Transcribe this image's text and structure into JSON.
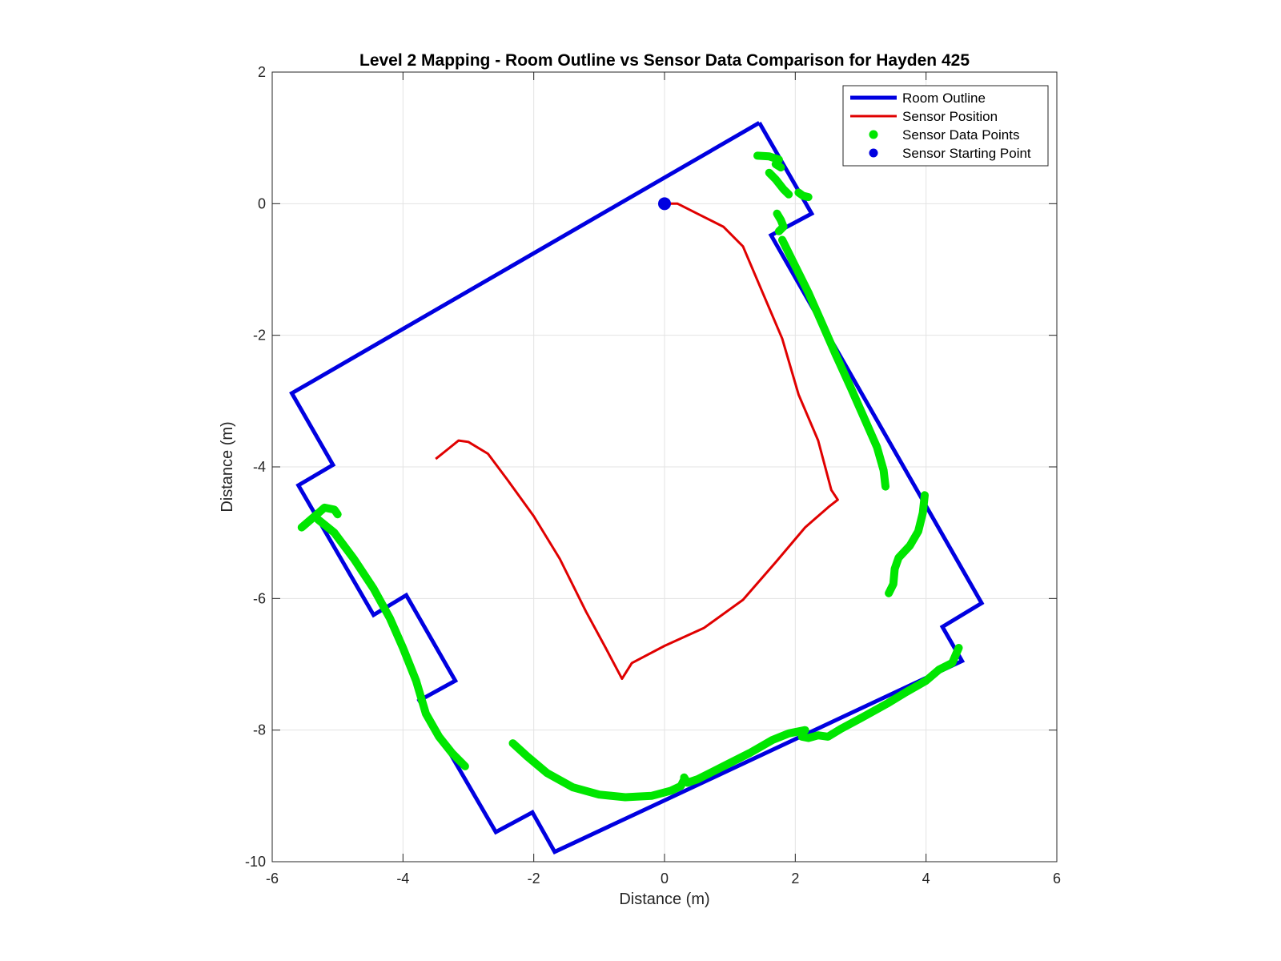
{
  "chart_data": {
    "type": "line",
    "title": "Level 2 Mapping - Room Outline vs Sensor Data Comparison for Hayden 425",
    "xlabel": "Distance (m)",
    "ylabel": "Distance (m)",
    "xlim": [
      -6,
      6
    ],
    "ylim": [
      -10,
      2
    ],
    "xticks": [
      -6,
      -4,
      -2,
      0,
      2,
      4,
      6
    ],
    "yticks": [
      -10,
      -8,
      -6,
      -4,
      -2,
      0,
      2
    ],
    "grid": true,
    "legend_position": "top-right",
    "series": [
      {
        "name": "Room Outline",
        "kind": "line",
        "color": "#0000e0",
        "points": [
          [
            1.45,
            1.23
          ],
          [
            2.25,
            -0.15
          ],
          [
            1.63,
            -0.48
          ],
          [
            4.85,
            -6.07
          ],
          [
            4.25,
            -6.43
          ],
          [
            4.55,
            -6.95
          ],
          [
            -1.68,
            -9.85
          ],
          [
            -2.02,
            -9.25
          ],
          [
            -2.58,
            -9.55
          ],
          [
            -3.75,
            -7.55
          ],
          [
            -3.2,
            -7.25
          ],
          [
            -3.95,
            -5.95
          ],
          [
            -4.45,
            -6.25
          ],
          [
            -5.6,
            -4.28
          ],
          [
            -5.07,
            -3.97
          ],
          [
            -5.7,
            -2.88
          ],
          [
            1.45,
            1.23
          ]
        ]
      },
      {
        "name": "Sensor Position",
        "kind": "line",
        "color": "#e00000",
        "points": [
          [
            -3.5,
            -3.88
          ],
          [
            -3.3,
            -3.72
          ],
          [
            -3.15,
            -3.6
          ],
          [
            -3.0,
            -3.62
          ],
          [
            -2.7,
            -3.8
          ],
          [
            -2.4,
            -4.2
          ],
          [
            -2.0,
            -4.75
          ],
          [
            -1.6,
            -5.4
          ],
          [
            -1.2,
            -6.2
          ],
          [
            -0.9,
            -6.75
          ],
          [
            -0.65,
            -7.22
          ],
          [
            -0.5,
            -6.98
          ],
          [
            0.0,
            -6.72
          ],
          [
            0.6,
            -6.45
          ],
          [
            1.2,
            -6.02
          ],
          [
            1.7,
            -5.45
          ],
          [
            2.15,
            -4.92
          ],
          [
            2.52,
            -4.6
          ],
          [
            2.65,
            -4.5
          ],
          [
            2.55,
            -4.35
          ],
          [
            2.35,
            -3.6
          ],
          [
            2.05,
            -2.9
          ],
          [
            1.8,
            -2.05
          ],
          [
            1.5,
            -1.35
          ],
          [
            1.2,
            -0.65
          ],
          [
            0.9,
            -0.35
          ],
          [
            0.5,
            -0.15
          ],
          [
            0.2,
            0.0
          ],
          [
            0.05,
            0.0
          ]
        ]
      },
      {
        "name": "Sensor Data Points",
        "kind": "scatter",
        "color": "#00e600",
        "segments": [
          [
            [
              1.42,
              0.73
            ],
            [
              1.6,
              0.72
            ],
            [
              1.75,
              0.67
            ],
            [
              1.7,
              0.6
            ],
            [
              1.78,
              0.55
            ]
          ],
          [
            [
              1.6,
              0.47
            ],
            [
              1.7,
              0.37
            ],
            [
              1.82,
              0.22
            ],
            [
              1.9,
              0.14
            ]
          ],
          [
            [
              2.05,
              0.17
            ],
            [
              2.12,
              0.12
            ],
            [
              2.2,
              0.1
            ]
          ],
          [
            [
              1.72,
              -0.15
            ],
            [
              1.78,
              -0.25
            ],
            [
              1.82,
              -0.35
            ],
            [
              1.75,
              -0.42
            ]
          ],
          [
            [
              1.8,
              -0.55
            ],
            [
              2.0,
              -0.95
            ],
            [
              2.2,
              -1.35
            ],
            [
              2.4,
              -1.8
            ],
            [
              2.62,
              -2.3
            ],
            [
              2.85,
              -2.8
            ],
            [
              3.05,
              -3.25
            ],
            [
              3.25,
              -3.7
            ],
            [
              3.35,
              -4.05
            ],
            [
              3.38,
              -4.3
            ]
          ],
          [
            [
              3.98,
              -4.43
            ],
            [
              3.95,
              -4.7
            ],
            [
              3.88,
              -4.98
            ],
            [
              3.75,
              -5.2
            ],
            [
              3.58,
              -5.38
            ],
            [
              3.52,
              -5.55
            ],
            [
              3.5,
              -5.78
            ],
            [
              3.43,
              -5.92
            ]
          ],
          [
            [
              4.5,
              -6.75
            ],
            [
              4.4,
              -6.98
            ],
            [
              4.2,
              -7.08
            ],
            [
              4.0,
              -7.25
            ],
            [
              3.7,
              -7.42
            ],
            [
              3.4,
              -7.6
            ],
            [
              3.0,
              -7.82
            ],
            [
              2.7,
              -7.98
            ],
            [
              2.5,
              -8.1
            ],
            [
              2.35,
              -8.08
            ],
            [
              2.2,
              -8.12
            ],
            [
              2.1,
              -8.1
            ]
          ],
          [
            [
              2.15,
              -8.0
            ],
            [
              1.9,
              -8.05
            ],
            [
              1.65,
              -8.15
            ],
            [
              1.3,
              -8.35
            ],
            [
              0.9,
              -8.55
            ],
            [
              0.5,
              -8.75
            ],
            [
              0.35,
              -8.8
            ],
            [
              0.3,
              -8.72
            ]
          ],
          [
            [
              -2.32,
              -8.2
            ],
            [
              -2.1,
              -8.4
            ],
            [
              -1.8,
              -8.65
            ],
            [
              -1.4,
              -8.87
            ],
            [
              -1.0,
              -8.98
            ],
            [
              -0.6,
              -9.02
            ],
            [
              -0.2,
              -9.0
            ],
            [
              0.1,
              -8.92
            ],
            [
              0.25,
              -8.85
            ],
            [
              0.3,
              -8.75
            ]
          ],
          [
            [
              -5.55,
              -4.92
            ],
            [
              -5.35,
              -4.75
            ],
            [
              -5.2,
              -4.62
            ],
            [
              -5.05,
              -4.65
            ],
            [
              -5.0,
              -4.72
            ]
          ],
          [
            [
              -5.3,
              -4.8
            ],
            [
              -5.05,
              -5.0
            ],
            [
              -4.75,
              -5.4
            ],
            [
              -4.45,
              -5.85
            ],
            [
              -4.2,
              -6.3
            ],
            [
              -4.0,
              -6.75
            ],
            [
              -3.8,
              -7.25
            ],
            [
              -3.65,
              -7.75
            ],
            [
              -3.45,
              -8.1
            ],
            [
              -3.25,
              -8.35
            ],
            [
              -3.05,
              -8.55
            ]
          ]
        ]
      },
      {
        "name": "Sensor Starting Point",
        "kind": "marker",
        "color": "#0000e0",
        "points": [
          [
            0.0,
            0.0
          ]
        ]
      }
    ]
  }
}
